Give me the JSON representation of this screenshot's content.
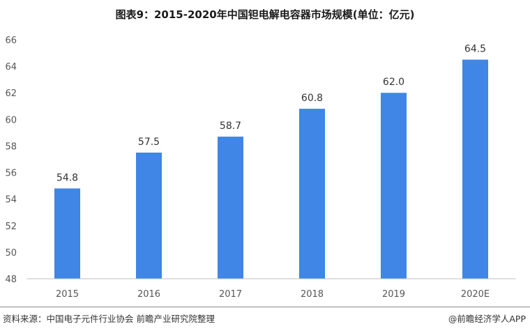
{
  "title": "图表9：2015-2020年中国钽电解电容器市场规模(单位：亿元)",
  "source": "资料来源：中国电子元件行业协会 前瞻产业研究院整理",
  "credit": "@前瞻经济学人APP",
  "colors": {
    "bar": "#3f86e6",
    "axis": "#bfbfbf",
    "tick_text": "#555555"
  },
  "chart_data": {
    "type": "bar",
    "categories": [
      "2015",
      "2016",
      "2017",
      "2018",
      "2019",
      "2020E"
    ],
    "values": [
      54.8,
      57.5,
      58.7,
      60.8,
      62.0,
      64.5
    ],
    "value_labels": [
      "54.8",
      "57.5",
      "58.7",
      "60.8",
      "62.0",
      "64.5"
    ],
    "title": "图表9：2015-2020年中国钽电解电容器市场规模(单位：亿元)",
    "xlabel": "",
    "ylabel": "",
    "ylim": [
      48,
      66
    ],
    "yticks": [
      48,
      50,
      52,
      54,
      56,
      58,
      60,
      62,
      64,
      66
    ],
    "grid": false,
    "legend": "none"
  }
}
